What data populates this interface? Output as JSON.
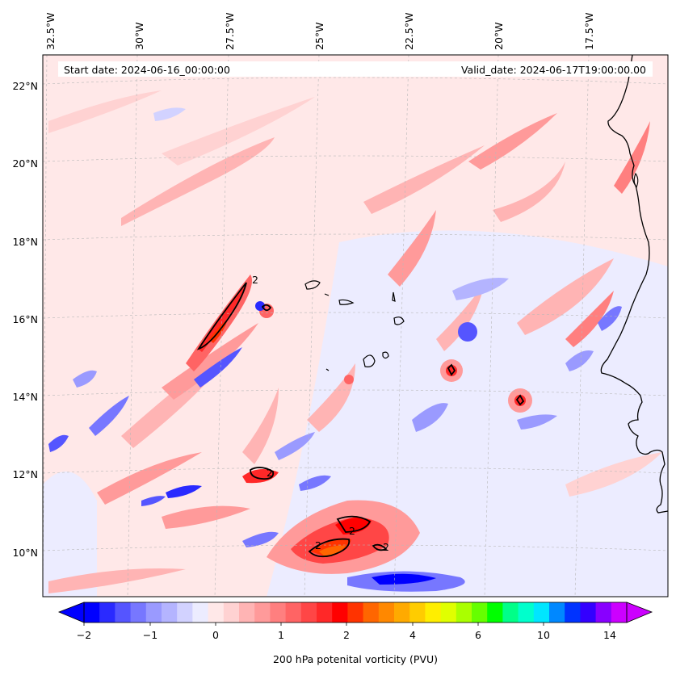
{
  "map": {
    "start_label": "Start date: 2024-06-16_00:00:00",
    "valid_label": "Valid_date: 2024-06-17T19:00:00.00",
    "lon_labels": [
      "32.5°W",
      "30°W",
      "27.5°W",
      "25°W",
      "22.5°W",
      "20°W",
      "17.5°W"
    ],
    "lat_labels": [
      "22°N",
      "20°N",
      "18°N",
      "16°N",
      "14°N",
      "12°N",
      "10°N"
    ],
    "contour_label": "2"
  },
  "colorbar": {
    "label": "200 hPa potenital vorticity (PVU)",
    "tick_labels": [
      "−2",
      "−1",
      "0",
      "1",
      "2",
      "4",
      "6",
      "10",
      "14"
    ],
    "colors": [
      "#0000ff",
      "#2a2aff",
      "#5555ff",
      "#7777ff",
      "#9a9aff",
      "#b4b4ff",
      "#d2d2ff",
      "#ececff",
      "#ffe8e8",
      "#ffd2d2",
      "#ffb4b4",
      "#ff9a9a",
      "#ff7f7f",
      "#ff6464",
      "#ff4646",
      "#ff2828",
      "#ff0000",
      "#ff3300",
      "#ff6600",
      "#ff8800",
      "#ffaa00",
      "#ffcc00",
      "#ffee00",
      "#e0ff00",
      "#aaff00",
      "#66ff00",
      "#00ff00",
      "#00ff88",
      "#00ffcc",
      "#00e6ff",
      "#0088ff",
      "#0033ff",
      "#3300ff",
      "#8800ff",
      "#cc00ff"
    ]
  },
  "chart_data": {
    "type": "map",
    "field": "200 hPa potential vorticity",
    "units": "PVU",
    "lon_range": [
      "33°W",
      "15.5°W"
    ],
    "lat_range": [
      "8.8°N",
      "22.8°N"
    ],
    "colorbar_ticks": [
      -2,
      -1,
      0,
      1,
      2,
      4,
      6,
      10,
      14
    ],
    "contour_level": 2,
    "grid": true,
    "coastline": true
  }
}
